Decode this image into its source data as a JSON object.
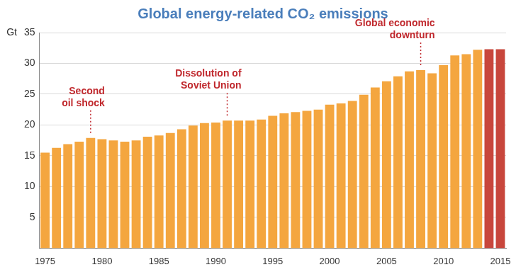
{
  "chart_data": {
    "type": "bar",
    "title": "Global energy-related CO₂ emissions",
    "y_label": "Gt",
    "x": [
      1975,
      1976,
      1977,
      1978,
      1979,
      1980,
      1981,
      1982,
      1983,
      1984,
      1985,
      1986,
      1987,
      1988,
      1989,
      1990,
      1991,
      1992,
      1993,
      1994,
      1995,
      1996,
      1997,
      1998,
      1999,
      2000,
      2001,
      2002,
      2003,
      2004,
      2005,
      2006,
      2007,
      2008,
      2009,
      2010,
      2011,
      2012,
      2013,
      2014,
      2015
    ],
    "values": [
      15.5,
      16.3,
      16.9,
      17.3,
      17.9,
      17.7,
      17.5,
      17.3,
      17.5,
      18.1,
      18.3,
      18.7,
      19.3,
      19.9,
      20.3,
      20.4,
      20.7,
      20.7,
      20.7,
      20.9,
      21.5,
      21.9,
      22.1,
      22.3,
      22.5,
      23.3,
      23.5,
      23.9,
      24.9,
      26.1,
      27.1,
      27.9,
      28.7,
      28.9,
      28.4,
      29.7,
      31.3,
      31.5,
      32.2,
      32.3,
      32.3
    ],
    "colors": [
      "#f4a63f",
      "#f4a63f",
      "#f4a63f",
      "#f4a63f",
      "#f4a63f",
      "#f4a63f",
      "#f4a63f",
      "#f4a63f",
      "#f4a63f",
      "#f4a63f",
      "#f4a63f",
      "#f4a63f",
      "#f4a63f",
      "#f4a63f",
      "#f4a63f",
      "#f4a63f",
      "#f4a63f",
      "#f4a63f",
      "#f4a63f",
      "#f4a63f",
      "#f4a63f",
      "#f4a63f",
      "#f4a63f",
      "#f4a63f",
      "#f4a63f",
      "#f4a63f",
      "#f4a63f",
      "#f4a63f",
      "#f4a63f",
      "#f4a63f",
      "#f4a63f",
      "#f4a63f",
      "#f4a63f",
      "#f4a63f",
      "#f4a63f",
      "#f4a63f",
      "#f4a63f",
      "#f4a63f",
      "#f4a63f",
      "#c8463c",
      "#c8463c"
    ],
    "xlim": [
      1974.5,
      2015.5
    ],
    "xticks": [
      1975,
      1980,
      1985,
      1990,
      1995,
      2000,
      2005,
      2010,
      2015
    ],
    "ylim": [
      0,
      35
    ],
    "yticks": [
      5,
      10,
      15,
      20,
      25,
      30,
      35
    ],
    "grid": true,
    "annotations": [
      {
        "x": 1979,
        "label": [
          "Second",
          "oil shock"
        ]
      },
      {
        "x": 1991,
        "label": [
          "Dissolution of",
          "Soviet Union"
        ]
      },
      {
        "x": 2008,
        "label": [
          "Global economic",
          "downturn"
        ]
      }
    ]
  }
}
